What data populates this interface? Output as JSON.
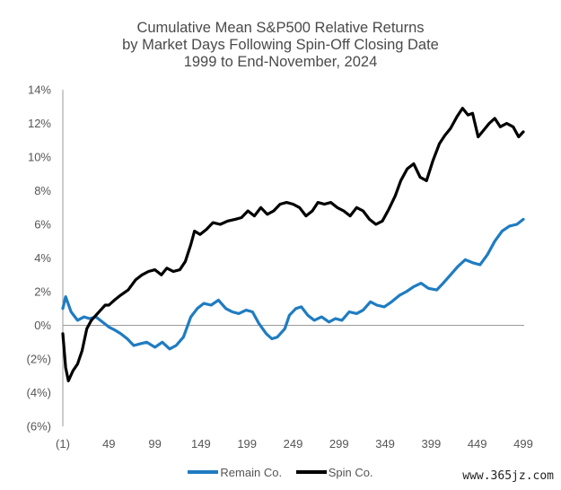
{
  "chart_data": {
    "type": "line",
    "title_lines": [
      "Cumulative Mean S&P500 Relative Returns",
      "by Market Days Following Spin-Off Closing Date",
      "1999 to End-November, 2024"
    ],
    "xlabel": "",
    "ylabel": "",
    "xlim": [
      -1,
      500
    ],
    "ylim": [
      -6,
      14
    ],
    "x_ticks": [
      -1,
      49,
      99,
      149,
      199,
      249,
      299,
      349,
      399,
      449,
      499
    ],
    "x_tick_labels": [
      "(1)",
      "49",
      "99",
      "149",
      "199",
      "249",
      "299",
      "349",
      "399",
      "449",
      "499"
    ],
    "y_ticks": [
      14,
      12,
      10,
      8,
      6,
      4,
      2,
      0,
      -2,
      -4,
      -6
    ],
    "y_tick_labels": [
      "14%",
      "12%",
      "10%",
      "8%",
      "6%",
      "4%",
      "2%",
      "0%",
      "(2%)",
      "(4%)",
      "(6%)"
    ],
    "legend_position": "bottom-center",
    "grid": false,
    "series": [
      {
        "name": "Remain Co.",
        "color": "#1f7cc1",
        "x": [
          -1,
          2,
          8,
          15,
          22,
          28,
          35,
          42,
          49,
          56,
          62,
          69,
          76,
          83,
          90,
          99,
          107,
          115,
          122,
          130,
          138,
          145,
          152,
          160,
          168,
          176,
          183,
          190,
          198,
          205,
          212,
          220,
          226,
          232,
          240,
          245,
          252,
          258,
          265,
          272,
          280,
          288,
          295,
          302,
          310,
          318,
          325,
          333,
          340,
          348,
          356,
          365,
          372,
          380,
          388,
          396,
          405,
          412,
          420,
          428,
          436,
          445,
          452,
          460,
          468,
          476,
          484,
          492,
          499
        ],
        "values": [
          1.0,
          1.7,
          0.8,
          0.3,
          0.5,
          0.4,
          0.5,
          0.2,
          -0.1,
          -0.3,
          -0.5,
          -0.8,
          -1.2,
          -1.1,
          -1.0,
          -1.3,
          -1.0,
          -1.4,
          -1.2,
          -0.7,
          0.5,
          1.0,
          1.3,
          1.2,
          1.5,
          1.0,
          0.8,
          0.7,
          0.9,
          0.8,
          0.1,
          -0.5,
          -0.8,
          -0.7,
          -0.2,
          0.6,
          1.0,
          1.1,
          0.6,
          0.3,
          0.5,
          0.2,
          0.4,
          0.3,
          0.8,
          0.7,
          0.9,
          1.4,
          1.2,
          1.1,
          1.4,
          1.8,
          2.0,
          2.3,
          2.5,
          2.2,
          2.1,
          2.5,
          3.0,
          3.5,
          3.9,
          3.7,
          3.6,
          4.2,
          5.0,
          5.6,
          5.9,
          6.0,
          6.3
        ]
      },
      {
        "name": "Spin Co.",
        "color": "#000000",
        "x": [
          -1,
          2,
          5,
          10,
          15,
          20,
          25,
          30,
          35,
          40,
          45,
          49,
          55,
          62,
          70,
          78,
          85,
          92,
          99,
          106,
          112,
          119,
          126,
          132,
          138,
          142,
          148,
          155,
          162,
          170,
          178,
          186,
          193,
          200,
          207,
          214,
          221,
          228,
          235,
          242,
          249,
          256,
          263,
          270,
          276,
          283,
          290,
          297,
          304,
          311,
          318,
          325,
          332,
          339,
          346,
          353,
          360,
          366,
          373,
          380,
          387,
          394,
          401,
          408,
          414,
          420,
          427,
          433,
          439,
          444,
          450,
          456,
          462,
          468,
          474,
          481,
          488,
          494,
          499
        ],
        "values": [
          -0.5,
          -2.5,
          -3.3,
          -2.7,
          -2.3,
          -1.5,
          -0.2,
          0.3,
          0.6,
          0.9,
          1.2,
          1.2,
          1.5,
          1.8,
          2.1,
          2.7,
          3.0,
          3.2,
          3.3,
          3.0,
          3.4,
          3.2,
          3.3,
          3.8,
          4.8,
          5.6,
          5.4,
          5.7,
          6.1,
          6.0,
          6.2,
          6.3,
          6.4,
          6.8,
          6.5,
          7.0,
          6.6,
          6.8,
          7.2,
          7.3,
          7.2,
          7.0,
          6.5,
          6.8,
          7.3,
          7.2,
          7.3,
          7.0,
          6.8,
          6.5,
          7.0,
          6.8,
          6.3,
          6.0,
          6.2,
          6.9,
          7.7,
          8.6,
          9.3,
          9.6,
          8.8,
          8.6,
          9.8,
          10.8,
          11.3,
          11.7,
          12.4,
          12.9,
          12.5,
          12.6,
          11.2,
          11.6,
          12.0,
          12.3,
          11.8,
          12.0,
          11.8,
          11.2,
          11.5
        ]
      }
    ]
  },
  "watermark": "www.365jz.com"
}
